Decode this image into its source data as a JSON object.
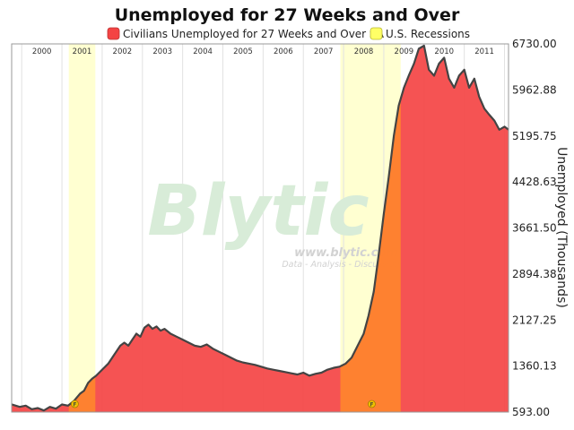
{
  "chart_data": {
    "type": "area",
    "title": "Unemployed for 27 Weeks and Over",
    "ylabel": "Unemployed (Thousands)",
    "xlabel": "",
    "ylim": [
      593,
      6730
    ],
    "x_range": [
      1999.75,
      2012.1
    ],
    "y_ticks": [
      "593.00",
      "1360.13",
      "2127.25",
      "2894.38",
      "3661.50",
      "4428.63",
      "5195.75",
      "5962.88",
      "6730.00"
    ],
    "y_tick_values": [
      593.0,
      1360.13,
      2127.25,
      2894.38,
      3661.5,
      4428.63,
      5195.75,
      5962.88,
      6730.0
    ],
    "years": [
      "2000",
      "2001",
      "2002",
      "2003",
      "2004",
      "2005",
      "2006",
      "2007",
      "2008",
      "2009",
      "2010",
      "2011"
    ],
    "legend": [
      {
        "label": "Civilians Unemployed for 27 Weeks and Over SA",
        "color": "#f44444"
      },
      {
        "label": "U.S. Recessions",
        "color": "#ffff99"
      }
    ],
    "recessions": [
      [
        2001.17,
        2001.83
      ],
      [
        2007.92,
        2009.42
      ]
    ],
    "marker_label": "F",
    "series": [
      {
        "name": "Civilians Unemployed for 27 Weeks and Over SA",
        "color": "#f44444",
        "x": [
          1999.75,
          1999.95,
          2000.1,
          2000.25,
          2000.4,
          2000.55,
          2000.7,
          2000.85,
          2001.0,
          2001.15,
          2001.3,
          2001.45,
          2001.55,
          2001.65,
          2001.75,
          2001.85,
          2002.0,
          2002.15,
          2002.3,
          2002.45,
          2002.55,
          2002.65,
          2002.75,
          2002.85,
          2002.95,
          2003.05,
          2003.15,
          2003.25,
          2003.35,
          2003.45,
          2003.55,
          2003.7,
          2003.85,
          2004.0,
          2004.15,
          2004.3,
          2004.45,
          2004.6,
          2004.75,
          2004.9,
          2005.05,
          2005.2,
          2005.35,
          2005.5,
          2005.65,
          2005.8,
          2005.95,
          2006.1,
          2006.25,
          2006.4,
          2006.55,
          2006.7,
          2006.85,
          2007.0,
          2007.15,
          2007.3,
          2007.45,
          2007.6,
          2007.75,
          2007.9,
          2008.05,
          2008.2,
          2008.35,
          2008.5,
          2008.62,
          2008.75,
          2008.87,
          2009.0,
          2009.12,
          2009.25,
          2009.37,
          2009.5,
          2009.62,
          2009.75,
          2009.87,
          2010.0,
          2010.12,
          2010.25,
          2010.37,
          2010.5,
          2010.62,
          2010.75,
          2010.87,
          2011.0,
          2011.12,
          2011.25,
          2011.37,
          2011.5,
          2011.62,
          2011.75,
          2011.87,
          2012.0,
          2012.1
        ],
        "values": [
          720,
          680,
          700,
          640,
          660,
          620,
          680,
          650,
          720,
          700,
          780,
          900,
          950,
          1080,
          1150,
          1200,
          1300,
          1400,
          1550,
          1700,
          1750,
          1700,
          1800,
          1900,
          1850,
          2000,
          2050,
          1980,
          2020,
          1950,
          1980,
          1900,
          1850,
          1800,
          1750,
          1700,
          1680,
          1720,
          1650,
          1600,
          1550,
          1500,
          1450,
          1420,
          1400,
          1380,
          1350,
          1320,
          1300,
          1280,
          1260,
          1240,
          1220,
          1250,
          1200,
          1230,
          1250,
          1300,
          1330,
          1350,
          1400,
          1500,
          1700,
          1900,
          2200,
          2600,
          3200,
          3900,
          4500,
          5200,
          5700,
          6000,
          6200,
          6400,
          6650,
          6700,
          6300,
          6200,
          6400,
          6500,
          6150,
          6000,
          6200,
          6300,
          6000,
          6150,
          5850,
          5650,
          5550,
          5450,
          5300,
          5350,
          5300
        ]
      }
    ]
  }
}
